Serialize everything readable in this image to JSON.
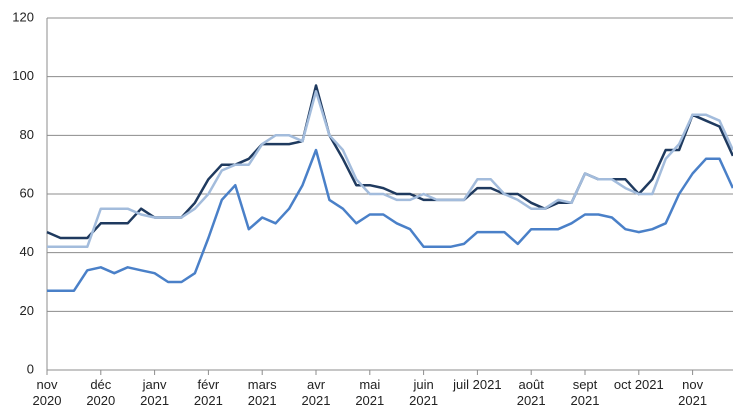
{
  "chart_data": {
    "type": "line",
    "categories": [
      "nov 2020",
      null,
      null,
      null,
      "déc 2020",
      null,
      null,
      null,
      "janv 2021",
      null,
      null,
      null,
      "févr 2021",
      null,
      null,
      null,
      "mars 2021",
      null,
      null,
      null,
      "avr 2021",
      null,
      null,
      null,
      "mai 2021",
      null,
      null,
      null,
      "juin 2021",
      null,
      null,
      null,
      "juil 2021",
      null,
      null,
      null,
      "août 2021",
      null,
      null,
      null,
      "sept 2021",
      null,
      null,
      null,
      "oct 2021",
      null,
      null,
      null,
      "nov 2021",
      null,
      null,
      null
    ],
    "series": [
      {
        "color": "#1f3a5f",
        "values": [
          47,
          45,
          45,
          45,
          50,
          50,
          50,
          55,
          52,
          52,
          52,
          57,
          65,
          70,
          70,
          72,
          77,
          77,
          77,
          78,
          97,
          80,
          72,
          63,
          63,
          62,
          60,
          60,
          58,
          58,
          58,
          58,
          62,
          62,
          60,
          60,
          57,
          55,
          57,
          57,
          67,
          65,
          65,
          65,
          60,
          65,
          75,
          75,
          87,
          85,
          83,
          73
        ]
      },
      {
        "color": "#a3bcdc",
        "values": [
          42,
          42,
          42,
          42,
          55,
          55,
          55,
          53,
          52,
          52,
          52,
          55,
          60,
          68,
          70,
          70,
          77,
          80,
          80,
          78,
          95,
          80,
          75,
          65,
          60,
          60,
          58,
          58,
          60,
          58,
          58,
          58,
          65,
          65,
          60,
          58,
          55,
          55,
          58,
          57,
          67,
          65,
          65,
          62,
          60,
          60,
          72,
          77,
          87,
          87,
          85,
          75
        ]
      },
      {
        "color": "#4a80c8",
        "values": [
          27,
          27,
          27,
          34,
          35,
          33,
          35,
          34,
          33,
          30,
          30,
          33,
          45,
          58,
          63,
          48,
          52,
          50,
          55,
          63,
          75,
          58,
          55,
          50,
          53,
          53,
          50,
          48,
          42,
          42,
          42,
          43,
          47,
          47,
          47,
          43,
          48,
          48,
          48,
          50,
          53,
          53,
          52,
          48,
          47,
          48,
          50,
          60,
          67,
          72,
          72,
          62
        ]
      }
    ],
    "ylim": [
      0,
      120
    ],
    "yticks": [
      0,
      20,
      40,
      60,
      80,
      100,
      120
    ],
    "grid": true
  }
}
